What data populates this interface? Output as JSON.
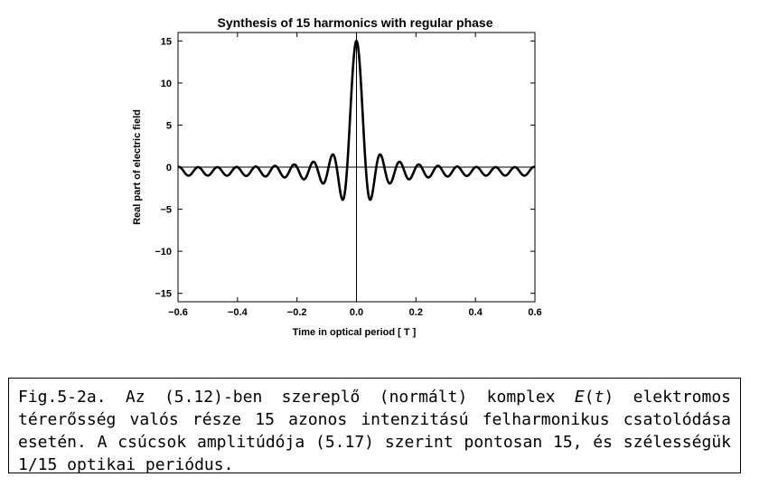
{
  "chart_data": {
    "type": "line",
    "title": "Synthesis of 15 harmonics with regular phase",
    "xlabel": "Time in optical period [ T ]",
    "ylabel": "Real part of electric field",
    "xlim": [
      -0.6,
      0.6
    ],
    "ylim": [
      -16,
      16
    ],
    "x_ticks": [
      -0.6,
      -0.4,
      -0.2,
      0.0,
      0.2,
      0.4,
      0.6
    ],
    "x_tick_labels": [
      "−0.6",
      "−0.4",
      "−0.2",
      "0.0",
      "0.2",
      "0.4",
      "0.6"
    ],
    "y_ticks": [
      -15,
      -10,
      -5,
      0,
      5,
      10,
      15
    ],
    "y_tick_labels": [
      "−15",
      "−10",
      "−5",
      "0",
      "5",
      "10",
      "15"
    ],
    "series": [
      {
        "function": "Re(sum_{n=1..15} exp(i*2*pi*n*t))",
        "harmonics": 15,
        "x_range": [
          -0.6,
          0.6
        ]
      }
    ],
    "grid": false,
    "legend": "none"
  },
  "caption": {
    "prefix": "Fig.5-2a. Az (5.12)-ben szereplő (normált) komplex ",
    "e_symbol": "E",
    "open_paren": "(",
    "t_symbol": "t",
    "suffix": ") elektromos térerősség valós része 15 azonos intenzitású felharmonikus csatolódása esetén. A csúcsok amplitúdója (5.17) szerint pontosan 15, és szélességük 1/15 optikai periódus."
  }
}
